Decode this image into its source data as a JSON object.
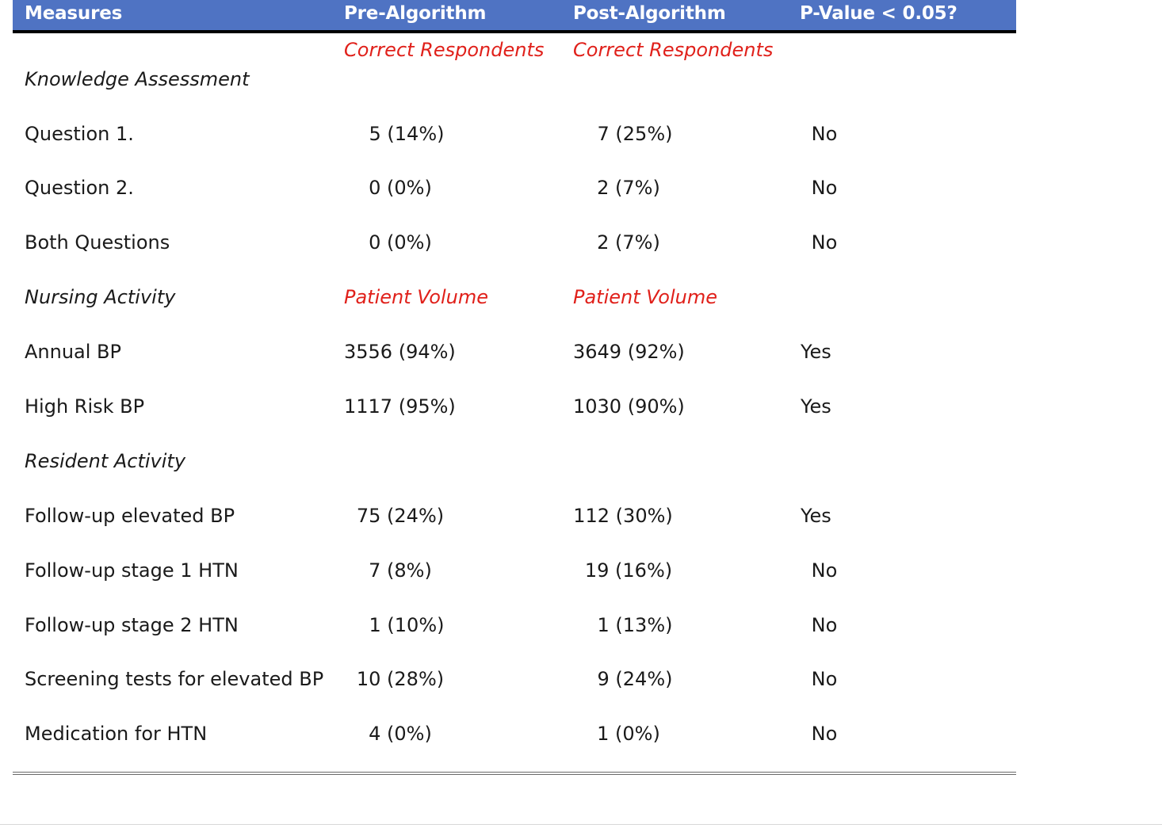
{
  "header": {
    "measures": "Measures",
    "pre": "Pre-Algorithm",
    "post": "Post-Algorithm",
    "pvalue": "P-Value < 0.05?"
  },
  "sections": {
    "knowledge": {
      "title": "Knowledge Assessment",
      "pre_sub": "Correct Respondents",
      "post_sub": "Correct Respondents"
    },
    "nursing": {
      "title": "Nursing Activity",
      "pre_sub": "Patient Volume",
      "post_sub": "Patient Volume"
    },
    "resident": {
      "title": "Resident Activity"
    }
  },
  "rows": [
    {
      "measure": "Question 1.",
      "pre": "5 (14%)",
      "post": "7 (25%)",
      "sig": "No"
    },
    {
      "measure": "Question 2.",
      "pre": "0 (0%)",
      "post": "2 (7%)",
      "sig": "No"
    },
    {
      "measure": "Both Questions",
      "pre": "0 (0%)",
      "post": "2 (7%)",
      "sig": "No"
    },
    {
      "measure": "Annual BP",
      "pre": "3556 (94%)",
      "post": "3649 (92%)",
      "sig": "Yes"
    },
    {
      "measure": "High Risk BP",
      "pre": "1117 (95%)",
      "post": "1030 (90%)",
      "sig": "Yes"
    },
    {
      "measure": "Follow-up elevated BP",
      "pre": "75 (24%)",
      "post": "112 (30%)",
      "sig": "Yes"
    },
    {
      "measure": "Follow-up stage 1 HTN",
      "pre": "7 (8%)",
      "post": "19 (16%)",
      "sig": "No"
    },
    {
      "measure": "Follow-up stage 2 HTN",
      "pre": "1 (10%)",
      "post": "1 (13%)",
      "sig": "No"
    },
    {
      "measure": "Screening tests for elevated BP",
      "pre": "10 (28%)",
      "post": "9 (24%)",
      "sig": "No"
    },
    {
      "measure": "Medication for HTN",
      "pre": "4 (0%)",
      "post": "1 (0%)",
      "sig": "No"
    }
  ],
  "colors": {
    "header_bg": "#4f73c3",
    "subheader_red": "#e0201a"
  }
}
